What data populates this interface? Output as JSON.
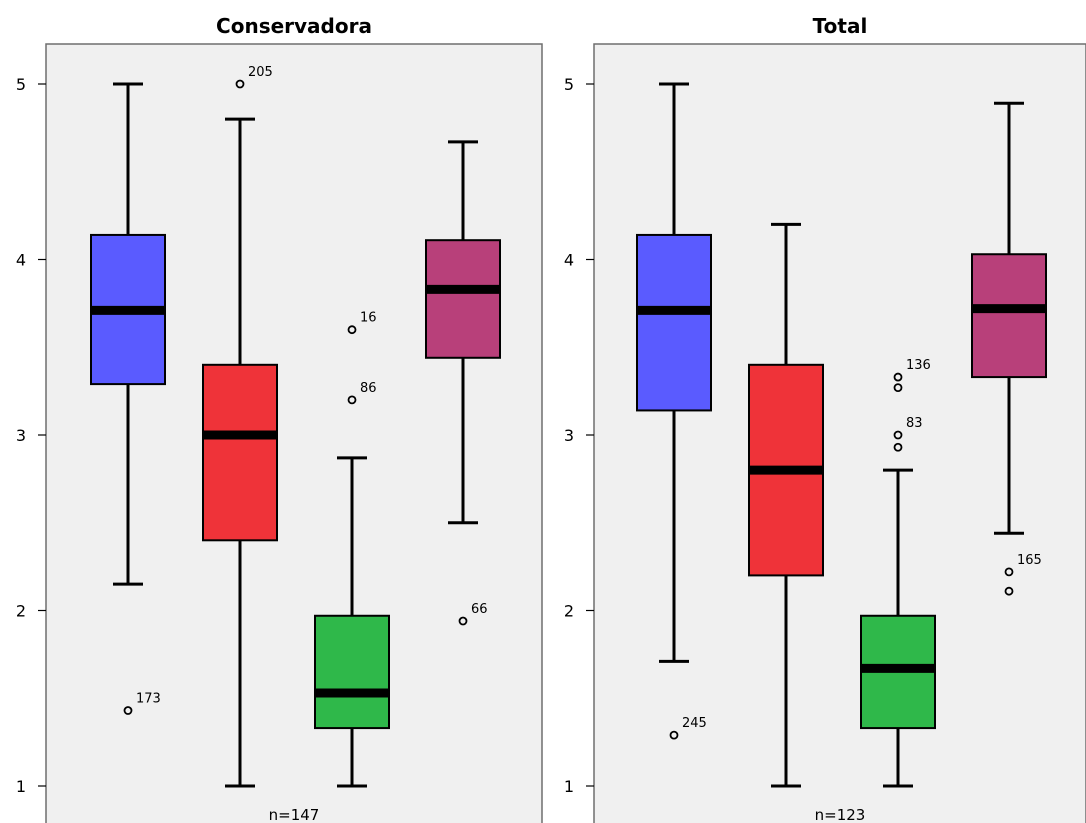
{
  "chart_data": [
    {
      "type": "box",
      "title": "Conservadora",
      "n_label": "n=147",
      "ylim": [
        0.85,
        5.35
      ],
      "yticks": [
        "1",
        "2",
        "3",
        "4",
        "5"
      ],
      "grid": false,
      "boxes": [
        {
          "color": "#5a5bff",
          "whisker_low": 2.15,
          "q1": 3.29,
          "median": 3.71,
          "q3": 4.14,
          "whisker_high": 5.0,
          "outliers": [
            {
              "value": 1.43,
              "label": "173"
            }
          ]
        },
        {
          "color": "#ef3339",
          "whisker_low": 1.0,
          "q1": 2.4,
          "median": 3.0,
          "q3": 3.4,
          "whisker_high": 4.8,
          "outliers": [
            {
              "value": 5.0,
              "label": "205"
            }
          ]
        },
        {
          "color": "#2fb84a",
          "whisker_low": 1.0,
          "q1": 1.33,
          "median": 1.53,
          "q3": 1.97,
          "whisker_high": 2.87,
          "outliers": [
            {
              "value": 3.6,
              "label": "16"
            },
            {
              "value": 3.2,
              "label": "86"
            }
          ]
        },
        {
          "color": "#b8407a",
          "whisker_low": 2.5,
          "q1": 3.44,
          "median": 3.83,
          "q3": 4.11,
          "whisker_high": 4.67,
          "outliers": [
            {
              "value": 1.94,
              "label": "66"
            }
          ]
        }
      ]
    },
    {
      "type": "box",
      "title": "Total",
      "n_label": "n=123",
      "ylim": [
        0.85,
        5.35
      ],
      "yticks": [
        "1",
        "2",
        "3",
        "4",
        "5"
      ],
      "grid": false,
      "boxes": [
        {
          "color": "#5a5bff",
          "whisker_low": 1.71,
          "q1": 3.14,
          "median": 3.71,
          "q3": 4.14,
          "whisker_high": 5.0,
          "outliers": [
            {
              "value": 1.29,
              "label": "245"
            }
          ]
        },
        {
          "color": "#ef3339",
          "whisker_low": 1.0,
          "q1": 2.2,
          "median": 2.8,
          "q3": 3.4,
          "whisker_high": 4.2,
          "outliers": []
        },
        {
          "color": "#2fb84a",
          "whisker_low": 1.0,
          "q1": 1.33,
          "median": 1.67,
          "q3": 1.97,
          "whisker_high": 2.8,
          "outliers": [
            {
              "value": 3.33,
              "label": "136"
            },
            {
              "value": 3.27,
              "label": ""
            },
            {
              "value": 3.0,
              "label": "83"
            },
            {
              "value": 2.93,
              "label": ""
            }
          ]
        },
        {
          "color": "#b8407a",
          "whisker_low": 2.44,
          "q1": 3.33,
          "median": 3.72,
          "q3": 4.03,
          "whisker_high": 4.89,
          "outliers": [
            {
              "value": 2.22,
              "label": "165"
            },
            {
              "value": 2.11,
              "label": ""
            }
          ]
        }
      ]
    }
  ]
}
